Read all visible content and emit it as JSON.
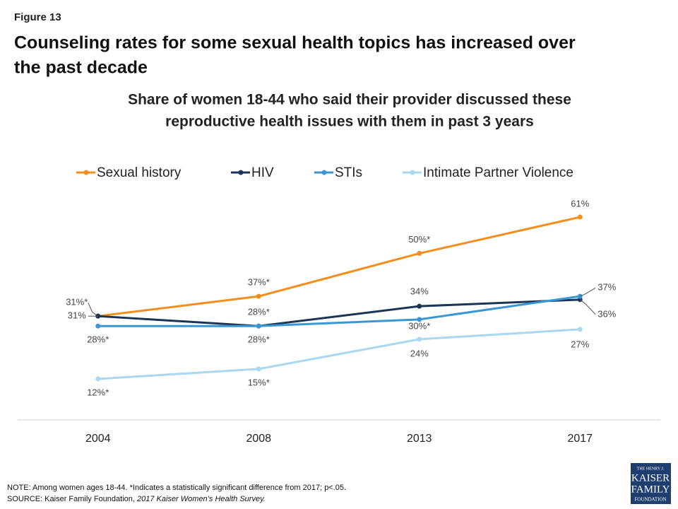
{
  "figure_label": "Figure 13",
  "title_lines": [
    "Counseling rates for some sexual health topics has increased over",
    "the past decade"
  ],
  "notes": [
    "NOTE:  Among women ages 18-44. *Indicates a statistically significant difference from 2017; p<.05."
  ],
  "source": [
    "SOURCE:  Kaiser Family Foundation, ",
    "2017 Kaiser Women’s Health Survey."
  ],
  "logo": [
    "THE HENRY J.",
    "KAISER",
    "FAMILY",
    "FOUNDATION"
  ],
  "chart_data": {
    "type": "line",
    "subtitle_lines": [
      "Share of women 18-44 who said their provider discussed these",
      "reproductive health issues with them in past 3 years"
    ],
    "categories": [
      "2004",
      "2008",
      "2013",
      "2017"
    ],
    "ylim": [
      0,
      70
    ],
    "series": [
      {
        "name": "Sexual history",
        "color": "#f28e1e",
        "values": [
          31,
          37,
          50,
          61
        ],
        "value_labels": [
          "31%*",
          "37%*",
          "50%*",
          "61%"
        ]
      },
      {
        "name": "HIV",
        "color": "#1c3557",
        "values": [
          31,
          28,
          34,
          36
        ],
        "value_labels": [
          "31%",
          "28%*",
          "34%",
          "36%"
        ]
      },
      {
        "name": "STIs",
        "color": "#3a97d4",
        "values": [
          28,
          28,
          30,
          37
        ],
        "value_labels": [
          "28%*",
          "28%*",
          "30%*",
          "37%"
        ]
      },
      {
        "name": "Intimate Partner Violence",
        "color": "#a9d8f0",
        "values": [
          12,
          15,
          24,
          27
        ],
        "value_labels": [
          "12%*",
          "15%*",
          "24%",
          "27%"
        ]
      }
    ]
  }
}
